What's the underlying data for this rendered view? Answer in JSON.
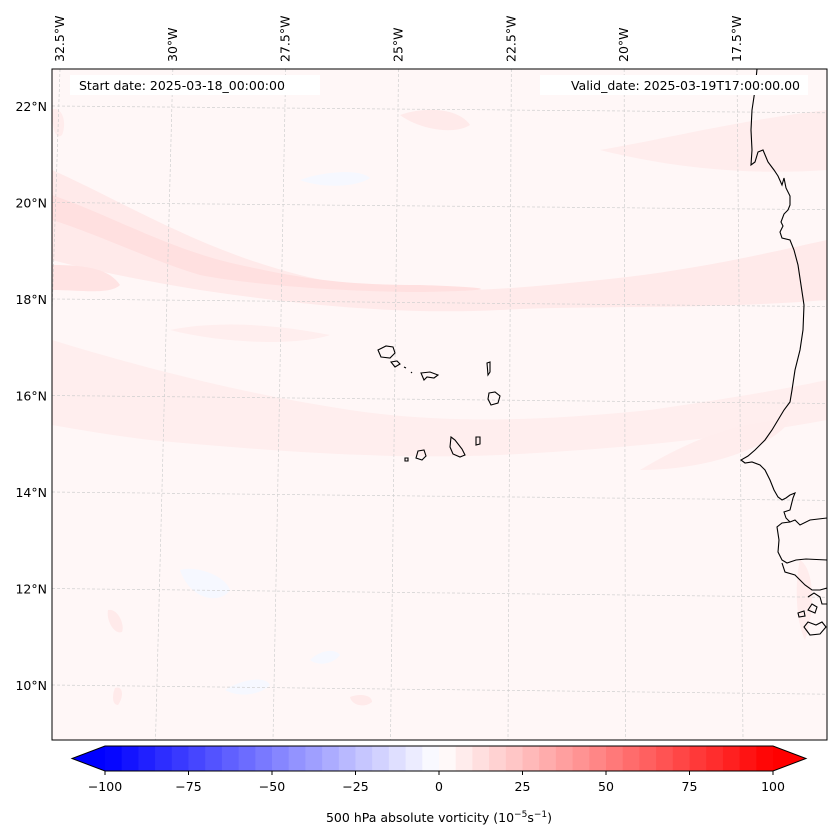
{
  "chart_data": {
    "type": "heatmap",
    "title": "",
    "map": {
      "region": "Cape Verde / West Africa coast",
      "lon_ticks": [
        "32.5°W",
        "30°W",
        "27.5°W",
        "25°W",
        "22.5°W",
        "20°W",
        "17.5°W"
      ],
      "lon_values": [
        -32.5,
        -30,
        -27.5,
        -25,
        -22.5,
        -20,
        -17.5
      ],
      "lat_ticks": [
        "22°N",
        "20°N",
        "18°N",
        "16°N",
        "14°N",
        "12°N",
        "10°N"
      ],
      "lat_values": [
        22,
        20,
        18,
        16,
        14,
        12,
        10
      ],
      "lon_range": [
        -33,
        -16.5
      ],
      "lat_range": [
        9,
        22.8
      ],
      "grid": true,
      "background_value_range": [
        0,
        10
      ],
      "features": [
        "coastlines",
        "Cape Verde islands"
      ]
    },
    "annotations": {
      "start_date": "Start date: 2025-03-18_00:00:00",
      "valid_date": "Valid_date: 2025-03-19T17:00:00.00"
    },
    "colorbar": {
      "label_main": "500 hPa absolute vorticity (10",
      "label_exp1": "−5",
      "label_mid": "s",
      "label_exp2": "−1",
      "label_end": ")",
      "min": -100,
      "max": 100,
      "step": 5,
      "extend": "both",
      "ticks": [
        -100,
        -75,
        -50,
        -25,
        0,
        25,
        50,
        75,
        100
      ],
      "tick_labels": [
        "−100",
        "−75",
        "−50",
        "−25",
        "0",
        "25",
        "50",
        "75",
        "100"
      ],
      "colormap": "bwr",
      "colors": {
        "low": "#0000ff",
        "mid": "#ffffff",
        "high": "#ff0000"
      }
    }
  }
}
